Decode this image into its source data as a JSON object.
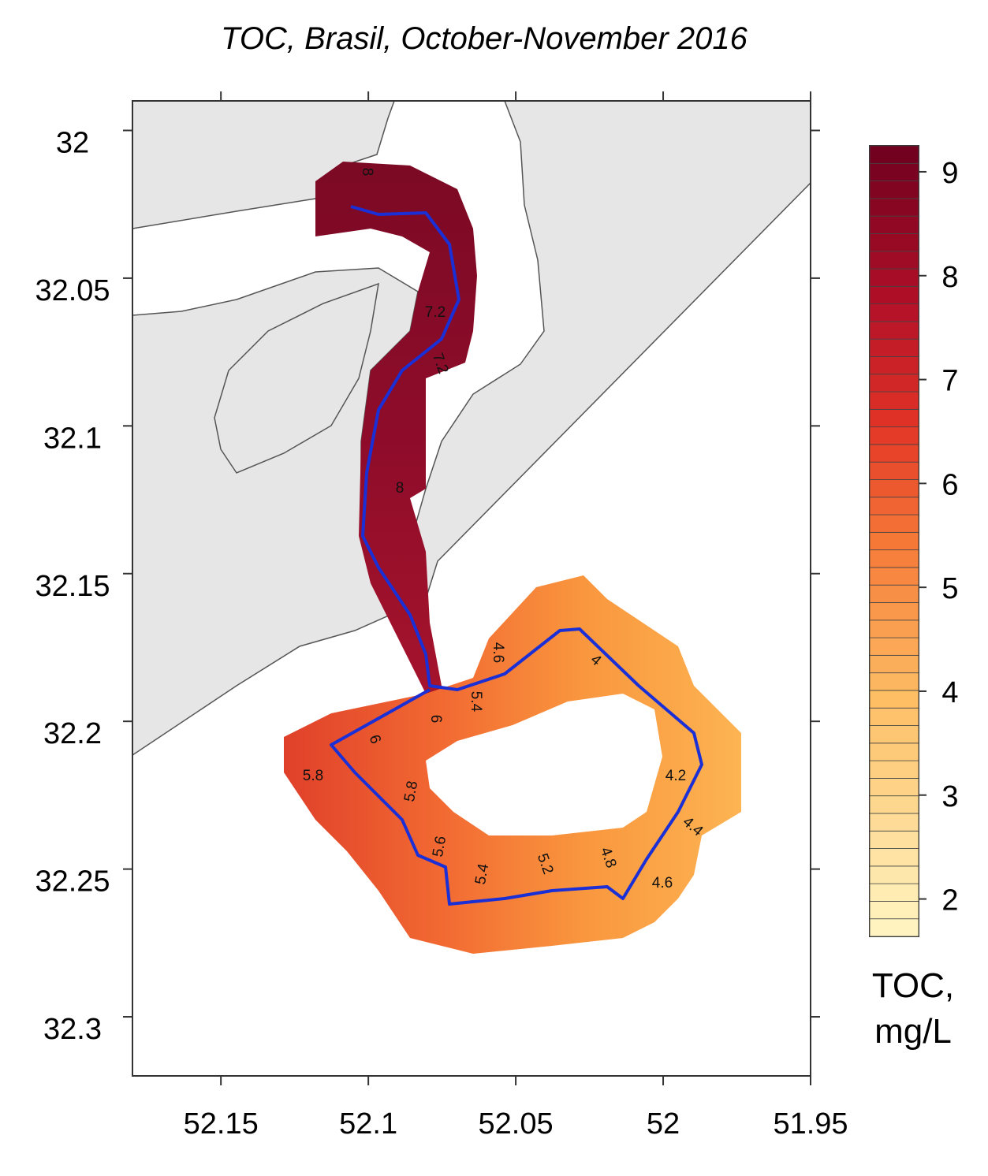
{
  "map": {
    "title": "TOC, Brasil, October-November 2016",
    "xlim": [
      52.18,
      51.95
    ],
    "ylim": [
      31.99,
      32.32
    ],
    "xticks": [
      52.15,
      52.1,
      52.05,
      52,
      51.95
    ],
    "yticks": [
      32,
      32.05,
      32.1,
      32.15,
      32.2,
      32.25,
      32.3
    ],
    "colorbar": {
      "label": [
        "TOC,",
        "mg/L"
      ],
      "lim": [
        1.64,
        9.25
      ],
      "ticks": [
        2,
        3,
        4,
        5,
        6,
        7,
        8,
        9
      ]
    },
    "contour_labels": [
      "8",
      "7.2",
      "7.2",
      "8",
      "4.6",
      "4",
      "5.4",
      "6",
      "6",
      "5.8",
      "5.8",
      "5.6",
      "5.4",
      "5.2",
      "4.8",
      "4.6",
      "4.2",
      "4.4"
    ]
  }
}
